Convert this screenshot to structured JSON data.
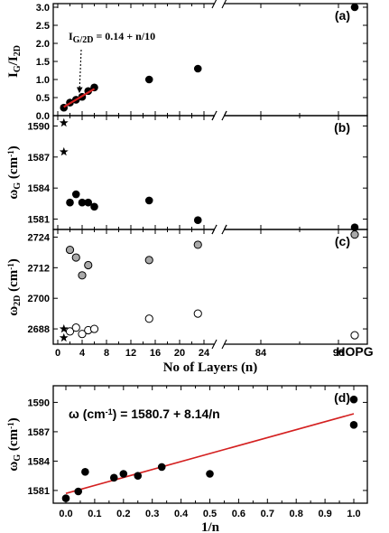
{
  "chart_data": [
    {
      "type": "scatter",
      "panel_label": "(a)",
      "ylabel": "I_G/I_2D",
      "ylim": [
        0,
        3.1
      ],
      "y_ticks": [
        "0.0",
        "0.5",
        "1.0",
        "1.5",
        "2.0",
        "2.5",
        "3.0"
      ],
      "y_tick_values": [
        0,
        0.5,
        1.0,
        1.5,
        2.0,
        2.5,
        3.0
      ],
      "annotation": "I_G/2D = 0.14 + n/10",
      "series": [
        {
          "marker": "filled-circle",
          "x": [
            1,
            2,
            3,
            4,
            5,
            6,
            15,
            23,
            "HOPG"
          ],
          "values": [
            0.22,
            0.36,
            0.44,
            0.52,
            0.68,
            0.78,
            1.0,
            1.3,
            3.0
          ]
        },
        {
          "marker": "line",
          "color": "#d42020",
          "x": [
            1,
            6
          ],
          "values": [
            0.24,
            0.74
          ]
        }
      ]
    },
    {
      "type": "scatter",
      "panel_label": "(b)",
      "ylabel": "ω_G (cm^-1)",
      "ylim": [
        1580,
        1591
      ],
      "y_ticks": [
        "1581",
        "1584",
        "1587",
        "1590"
      ],
      "y_tick_values": [
        1581,
        1584,
        1587,
        1590
      ],
      "series": [
        {
          "marker": "filled-circle",
          "x": [
            2,
            3,
            4,
            5,
            6,
            15,
            23,
            "HOPG"
          ],
          "values": [
            1582.6,
            1583.4,
            1582.6,
            1582.6,
            1582.2,
            1582.8,
            1580.9,
            1580.2
          ]
        },
        {
          "marker": "star",
          "x": [
            1,
            1
          ],
          "values": [
            1590.3,
            1587.5
          ]
        }
      ]
    },
    {
      "type": "scatter",
      "panel_label": "(c)",
      "ylabel": "ω_2D (cm^-1)",
      "ylim": [
        2682,
        2727
      ],
      "y_ticks": [
        "2688",
        "2700",
        "2712",
        "2724"
      ],
      "y_tick_values": [
        2688,
        2700,
        2712,
        2724
      ],
      "series": [
        {
          "marker": "gray-circle",
          "x": [
            2,
            3,
            4,
            5,
            15,
            23,
            "HOPG"
          ],
          "values": [
            2719,
            2716,
            2709,
            2713,
            2715,
            2721,
            2725
          ]
        },
        {
          "marker": "open-circle",
          "x": [
            2,
            3,
            4,
            5,
            6,
            15,
            23,
            "HOPG"
          ],
          "values": [
            2687,
            2688.5,
            2686,
            2687.5,
            2688,
            2692,
            2694,
            2685.5
          ]
        },
        {
          "marker": "star",
          "x": [
            1,
            1
          ],
          "values": [
            2688,
            2684.5
          ]
        }
      ],
      "xlabel": "No of Layers (n)",
      "x_ticks": [
        "0",
        "4",
        "8",
        "12",
        "16",
        "20",
        "24",
        "84",
        "96",
        "HOPG"
      ]
    },
    {
      "type": "scatter",
      "panel_label": "(d)",
      "ylabel": "ω_G (cm^-1)",
      "xlabel": "1/n",
      "xlim": [
        -0.03,
        1.03
      ],
      "ylim": [
        1579.7,
        1591.7
      ],
      "x_ticks": [
        "0.0",
        "0.1",
        "0.2",
        "0.3",
        "0.4",
        "0.5",
        "0.6",
        "0.7",
        "0.8",
        "0.9",
        "1.0"
      ],
      "x_tick_values": [
        0,
        0.1,
        0.2,
        0.3,
        0.4,
        0.5,
        0.6,
        0.7,
        0.8,
        0.9,
        1.0
      ],
      "y_ticks": [
        "1581",
        "1584",
        "1587",
        "1590"
      ],
      "y_tick_values": [
        1581,
        1584,
        1587,
        1590
      ],
      "annotation": "ω (cm^-1) = 1580.7 + 8.14/n",
      "series": [
        {
          "marker": "filled-circle",
          "x": [
            0.0,
            0.043,
            0.067,
            0.167,
            0.2,
            0.25,
            0.333,
            0.5,
            1.0,
            1.0
          ],
          "values": [
            1580.2,
            1580.9,
            1582.9,
            1582.3,
            1582.7,
            1582.5,
            1583.4,
            1582.7,
            1590.3,
            1587.7
          ]
        },
        {
          "marker": "line",
          "color": "#d42020",
          "x": [
            0.0,
            1.0
          ],
          "values": [
            1580.7,
            1588.84
          ]
        }
      ]
    }
  ]
}
